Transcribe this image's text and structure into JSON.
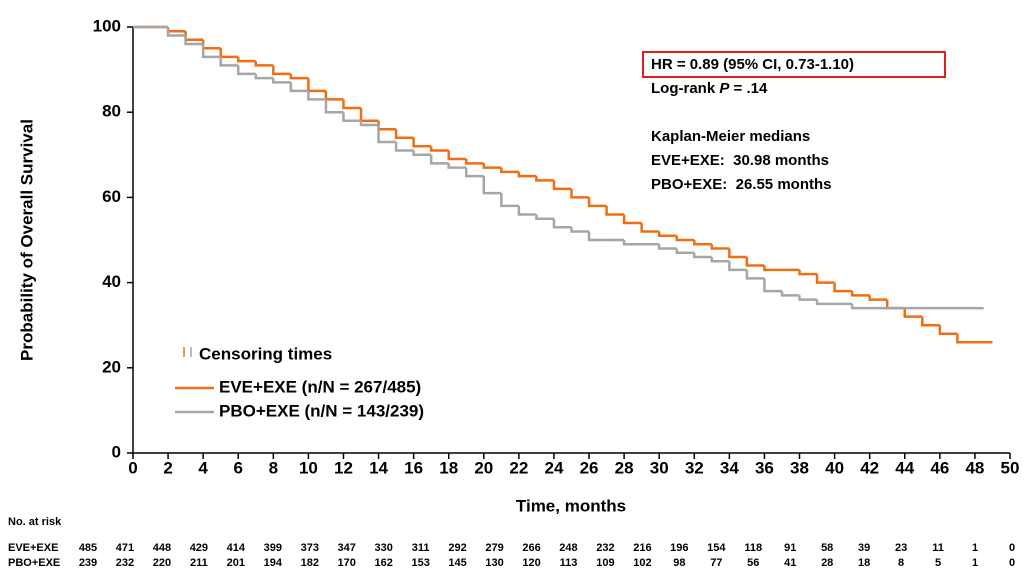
{
  "chart_data": {
    "type": "line",
    "step": true,
    "xlabel": "Time, months",
    "ylabel": "Probability of Overall Survival",
    "xlim": [
      0,
      50
    ],
    "ylim": [
      0,
      100
    ],
    "xticks": [
      0,
      2,
      4,
      6,
      8,
      10,
      12,
      14,
      16,
      18,
      20,
      22,
      24,
      26,
      28,
      30,
      32,
      34,
      36,
      38,
      40,
      42,
      44,
      46,
      48,
      50
    ],
    "yticks": [
      0,
      20,
      40,
      60,
      80,
      100
    ],
    "grid": false,
    "legend_position": "lower left",
    "censor_label": "Censoring times",
    "annotations": {
      "hr": "HR = 0.89 (95% CI, 0.73-1.10)",
      "logrank": [
        "Log-rank ",
        "P",
        " = .14"
      ],
      "medians_title": "Kaplan-Meier medians",
      "medians": [
        "EVE+EXE:  30.98 months",
        "PBO+EXE:  26.55 months"
      ]
    },
    "series": [
      {
        "name": "EVE+EXE (n/N = 267/485)",
        "color": "#f36c10",
        "x": [
          0,
          2,
          3,
          4,
          5,
          6,
          7,
          8,
          9,
          10,
          11,
          12,
          13,
          14,
          15,
          16,
          17,
          18,
          19,
          20,
          21,
          22,
          23,
          24,
          25,
          26,
          27,
          28,
          29,
          30,
          31,
          32,
          33,
          34,
          35,
          36,
          37,
          38,
          39,
          40,
          41,
          42,
          43,
          44,
          45,
          46,
          47,
          48,
          49
        ],
        "values": [
          100,
          99,
          97,
          95,
          93,
          92,
          91,
          89,
          88,
          85,
          83,
          81,
          78,
          76,
          74,
          72,
          71,
          69,
          68,
          67,
          66,
          65,
          64,
          62,
          60,
          58,
          56,
          54,
          52,
          51,
          50,
          49,
          48,
          46,
          44,
          43,
          43,
          42,
          40,
          38,
          37,
          36,
          34,
          32,
          30,
          28,
          26,
          26,
          26
        ]
      },
      {
        "name": "PBO+EXE (n/N = 143/239)",
        "color": "#a6a6a6",
        "x": [
          0,
          2,
          3,
          4,
          5,
          6,
          7,
          8,
          9,
          10,
          11,
          12,
          13,
          14,
          15,
          16,
          17,
          18,
          19,
          20,
          21,
          22,
          23,
          24,
          25,
          26,
          27,
          28,
          29,
          30,
          31,
          32,
          33,
          34,
          35,
          36,
          37,
          38,
          39,
          40,
          41,
          42,
          43,
          44,
          45,
          46,
          47,
          48,
          48.5
        ],
        "values": [
          100,
          98,
          96,
          93,
          91,
          89,
          88,
          87,
          85,
          83,
          80,
          78,
          77,
          73,
          71,
          70,
          68,
          67,
          65,
          61,
          58,
          56,
          55,
          53,
          52,
          50,
          50,
          49,
          49,
          48,
          47,
          46,
          45,
          43,
          41,
          38,
          37,
          36,
          35,
          35,
          34,
          34,
          34,
          34,
          34,
          34,
          34,
          34,
          34
        ]
      }
    ],
    "risk_table": {
      "title": "No. at risk",
      "rows": [
        {
          "label": "EVE+EXE",
          "counts": [
            485,
            471,
            448,
            429,
            414,
            399,
            373,
            347,
            330,
            311,
            292,
            279,
            266,
            248,
            232,
            216,
            196,
            154,
            118,
            91,
            58,
            39,
            23,
            11,
            1,
            0
          ]
        },
        {
          "label": "PBO+EXE",
          "counts": [
            239,
            232,
            220,
            211,
            201,
            194,
            182,
            170,
            162,
            153,
            145,
            130,
            120,
            113,
            109,
            102,
            98,
            77,
            56,
            41,
            28,
            18,
            8,
            5,
            1,
            0
          ]
        }
      ]
    }
  }
}
